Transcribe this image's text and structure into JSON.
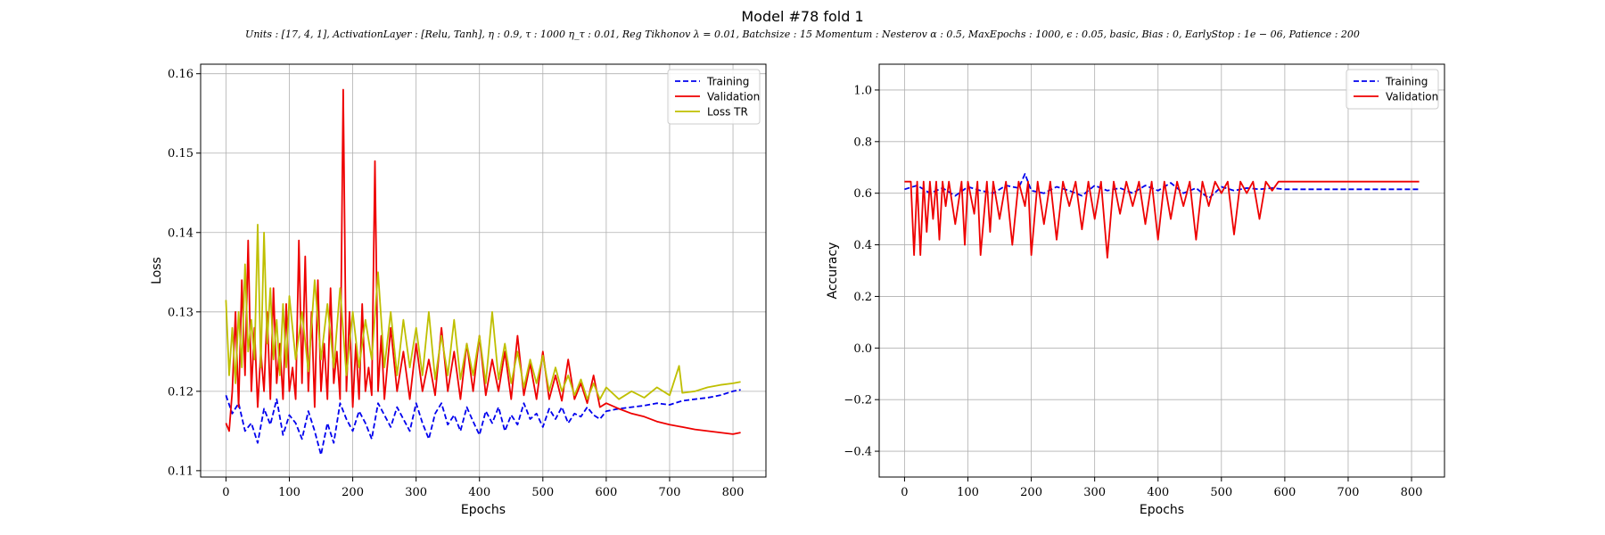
{
  "figure": {
    "title": "Model #78 fold 1",
    "subtitle": "Units : [17, 4, 1], ActivationLayer : [Relu, Tanh], η : 0.9, τ : 1000 η_τ : 0.01, Reg Tikhonov λ = 0.01, Batchsize : 15 Momentum : Nesterov α : 0.5, MaxEpochs : 1000, ϵ : 0.05, basic, Bias : 0, EarlyStop : 1e − 06, Patience : 200"
  },
  "colors": {
    "training": "#0000ee",
    "validation": "#ee0000",
    "loss_tr": "#bfbf00"
  },
  "chart_data": [
    {
      "type": "line",
      "xlabel": "Epochs",
      "ylabel": "Loss",
      "xlim": [
        -40,
        852
      ],
      "ylim": [
        0.1092,
        0.1612
      ],
      "xticks": [
        0,
        100,
        200,
        300,
        400,
        500,
        600,
        700,
        800
      ],
      "yticks": [
        0.11,
        0.12,
        0.13,
        0.14,
        0.15,
        0.16
      ],
      "ytick_labels": [
        "0.11",
        "0.12",
        "0.13",
        "0.14",
        "0.15",
        "0.16"
      ],
      "grid": true,
      "legend": "top-right",
      "series": [
        {
          "name": "Training",
          "style": "dashed",
          "x": [
            0,
            10,
            20,
            30,
            40,
            50,
            60,
            70,
            80,
            90,
            100,
            110,
            120,
            130,
            140,
            150,
            160,
            170,
            180,
            190,
            200,
            210,
            220,
            230,
            240,
            250,
            260,
            270,
            280,
            290,
            300,
            310,
            320,
            330,
            340,
            350,
            360,
            370,
            380,
            390,
            400,
            410,
            420,
            430,
            440,
            450,
            460,
            470,
            480,
            490,
            500,
            510,
            520,
            530,
            540,
            550,
            560,
            570,
            580,
            590,
            600,
            620,
            640,
            660,
            680,
            700,
            720,
            740,
            760,
            780,
            800,
            812
          ],
          "y": [
            0.1195,
            0.1172,
            0.1185,
            0.115,
            0.116,
            0.1135,
            0.1178,
            0.1158,
            0.119,
            0.1145,
            0.117,
            0.116,
            0.114,
            0.1175,
            0.115,
            0.112,
            0.116,
            0.1135,
            0.1185,
            0.1165,
            0.115,
            0.1175,
            0.116,
            0.114,
            0.1185,
            0.117,
            0.1155,
            0.118,
            0.1165,
            0.115,
            0.1185,
            0.116,
            0.114,
            0.1172,
            0.1185,
            0.1158,
            0.117,
            0.115,
            0.118,
            0.1162,
            0.1145,
            0.1175,
            0.116,
            0.118,
            0.115,
            0.117,
            0.1158,
            0.1185,
            0.1165,
            0.1172,
            0.1155,
            0.1178,
            0.1165,
            0.118,
            0.116,
            0.1172,
            0.1168,
            0.118,
            0.117,
            0.1165,
            0.1175,
            0.1178,
            0.118,
            0.1182,
            0.1185,
            0.1183,
            0.1188,
            0.119,
            0.1192,
            0.1195,
            0.12,
            0.1202
          ]
        },
        {
          "name": "Validation",
          "style": "solid",
          "x": [
            0,
            5,
            10,
            15,
            20,
            25,
            30,
            35,
            40,
            45,
            50,
            55,
            60,
            65,
            70,
            75,
            80,
            85,
            90,
            95,
            100,
            105,
            110,
            115,
            120,
            125,
            130,
            135,
            140,
            145,
            150,
            155,
            160,
            165,
            170,
            175,
            180,
            185,
            190,
            195,
            200,
            205,
            210,
            215,
            220,
            225,
            230,
            235,
            240,
            245,
            250,
            260,
            270,
            280,
            290,
            300,
            310,
            320,
            330,
            340,
            350,
            360,
            370,
            380,
            390,
            400,
            410,
            420,
            430,
            440,
            450,
            460,
            470,
            480,
            490,
            500,
            510,
            520,
            530,
            540,
            550,
            560,
            570,
            580,
            590,
            600,
            620,
            640,
            660,
            680,
            700,
            720,
            740,
            760,
            780,
            800,
            812
          ],
          "y": [
            0.116,
            0.115,
            0.12,
            0.13,
            0.118,
            0.134,
            0.122,
            0.139,
            0.12,
            0.128,
            0.118,
            0.125,
            0.12,
            0.13,
            0.119,
            0.133,
            0.121,
            0.126,
            0.119,
            0.131,
            0.12,
            0.123,
            0.119,
            0.139,
            0.121,
            0.137,
            0.12,
            0.13,
            0.118,
            0.134,
            0.12,
            0.126,
            0.119,
            0.133,
            0.121,
            0.125,
            0.119,
            0.158,
            0.12,
            0.13,
            0.118,
            0.126,
            0.119,
            0.131,
            0.12,
            0.123,
            0.1195,
            0.149,
            0.12,
            0.127,
            0.119,
            0.128,
            0.12,
            0.125,
            0.119,
            0.126,
            0.12,
            0.124,
            0.1195,
            0.128,
            0.12,
            0.125,
            0.119,
            0.126,
            0.12,
            0.127,
            0.1195,
            0.124,
            0.12,
            0.125,
            0.119,
            0.127,
            0.1195,
            0.1235,
            0.119,
            0.125,
            0.119,
            0.122,
            0.1188,
            0.124,
            0.119,
            0.121,
            0.1185,
            0.122,
            0.118,
            0.1185,
            0.1178,
            0.1172,
            0.1168,
            0.1162,
            0.1158,
            0.1155,
            0.1152,
            0.115,
            0.1148,
            0.1146,
            0.1148
          ]
        },
        {
          "name": "Loss TR",
          "style": "solid",
          "x": [
            0,
            5,
            10,
            15,
            20,
            25,
            30,
            35,
            40,
            45,
            50,
            55,
            60,
            65,
            70,
            75,
            80,
            85,
            90,
            95,
            100,
            110,
            120,
            130,
            140,
            150,
            160,
            170,
            180,
            190,
            200,
            210,
            220,
            230,
            240,
            250,
            260,
            270,
            280,
            290,
            300,
            310,
            320,
            330,
            340,
            350,
            360,
            370,
            380,
            390,
            400,
            410,
            420,
            430,
            440,
            450,
            460,
            470,
            480,
            490,
            500,
            510,
            520,
            530,
            540,
            550,
            560,
            570,
            580,
            590,
            600,
            620,
            640,
            660,
            680,
            700,
            715,
            720,
            740,
            760,
            780,
            800,
            812
          ],
          "y": [
            0.1315,
            0.122,
            0.128,
            0.121,
            0.13,
            0.123,
            0.136,
            0.125,
            0.129,
            0.124,
            0.141,
            0.123,
            0.14,
            0.126,
            0.133,
            0.124,
            0.129,
            0.122,
            0.131,
            0.123,
            0.132,
            0.124,
            0.13,
            0.1225,
            0.134,
            0.124,
            0.131,
            0.123,
            0.133,
            0.122,
            0.13,
            0.123,
            0.129,
            0.124,
            0.135,
            0.123,
            0.13,
            0.122,
            0.129,
            0.123,
            0.128,
            0.122,
            0.13,
            0.1215,
            0.127,
            0.122,
            0.129,
            0.1215,
            0.126,
            0.122,
            0.127,
            0.121,
            0.13,
            0.1215,
            0.126,
            0.121,
            0.125,
            0.1205,
            0.124,
            0.121,
            0.1245,
            0.12,
            0.123,
            0.12,
            0.122,
            0.1195,
            0.1215,
            0.119,
            0.121,
            0.119,
            0.1205,
            0.119,
            0.12,
            0.1192,
            0.1205,
            0.1195,
            0.1232,
            0.1198,
            0.12,
            0.1205,
            0.1208,
            0.121,
            0.1212
          ]
        }
      ]
    },
    {
      "type": "line",
      "xlabel": "Epochs",
      "ylabel": "Accuracy",
      "xlim": [
        -40,
        852
      ],
      "ylim": [
        -0.5,
        1.1
      ],
      "xticks": [
        0,
        100,
        200,
        300,
        400,
        500,
        600,
        700,
        800
      ],
      "yticks": [
        -0.4,
        -0.2,
        0.0,
        0.2,
        0.4,
        0.6,
        0.8,
        1.0
      ],
      "ytick_labels": [
        "−0.4",
        "−0.2",
        "0.0",
        "0.2",
        "0.4",
        "0.6",
        "0.8",
        "1.0"
      ],
      "grid": true,
      "legend": "top-right",
      "series": [
        {
          "name": "Training",
          "style": "dashed",
          "x": [
            0,
            20,
            40,
            60,
            80,
            100,
            120,
            140,
            160,
            180,
            190,
            200,
            220,
            240,
            260,
            280,
            300,
            320,
            340,
            360,
            380,
            400,
            420,
            440,
            460,
            480,
            500,
            520,
            540,
            560,
            580,
            600,
            700,
            812
          ],
          "y": [
            0.615,
            0.63,
            0.6,
            0.62,
            0.59,
            0.625,
            0.61,
            0.6,
            0.63,
            0.62,
            0.675,
            0.61,
            0.6,
            0.625,
            0.61,
            0.59,
            0.63,
            0.61,
            0.62,
            0.6,
            0.63,
            0.61,
            0.64,
            0.6,
            0.62,
            0.58,
            0.625,
            0.61,
            0.62,
            0.615,
            0.62,
            0.615,
            0.615,
            0.615
          ]
        },
        {
          "name": "Validation",
          "style": "solid",
          "x": [
            0,
            10,
            15,
            20,
            25,
            30,
            35,
            40,
            45,
            50,
            55,
            60,
            65,
            70,
            80,
            90,
            95,
            100,
            110,
            115,
            120,
            130,
            135,
            140,
            150,
            160,
            170,
            180,
            190,
            195,
            200,
            210,
            220,
            230,
            240,
            250,
            260,
            270,
            280,
            290,
            300,
            310,
            320,
            330,
            340,
            350,
            360,
            370,
            380,
            390,
            400,
            410,
            420,
            430,
            440,
            450,
            460,
            470,
            480,
            490,
            500,
            510,
            520,
            530,
            540,
            550,
            560,
            570,
            580,
            590,
            600,
            700,
            812
          ],
          "y": [
            0.645,
            0.645,
            0.36,
            0.645,
            0.36,
            0.645,
            0.45,
            0.645,
            0.5,
            0.645,
            0.42,
            0.645,
            0.55,
            0.645,
            0.48,
            0.645,
            0.4,
            0.645,
            0.52,
            0.645,
            0.36,
            0.645,
            0.45,
            0.645,
            0.5,
            0.645,
            0.4,
            0.645,
            0.55,
            0.645,
            0.36,
            0.645,
            0.48,
            0.645,
            0.42,
            0.645,
            0.55,
            0.645,
            0.46,
            0.645,
            0.5,
            0.645,
            0.35,
            0.645,
            0.52,
            0.645,
            0.55,
            0.645,
            0.48,
            0.645,
            0.42,
            0.645,
            0.5,
            0.645,
            0.55,
            0.645,
            0.42,
            0.645,
            0.55,
            0.645,
            0.6,
            0.645,
            0.44,
            0.645,
            0.6,
            0.645,
            0.5,
            0.645,
            0.61,
            0.645,
            0.645,
            0.645,
            0.645
          ]
        }
      ]
    }
  ]
}
